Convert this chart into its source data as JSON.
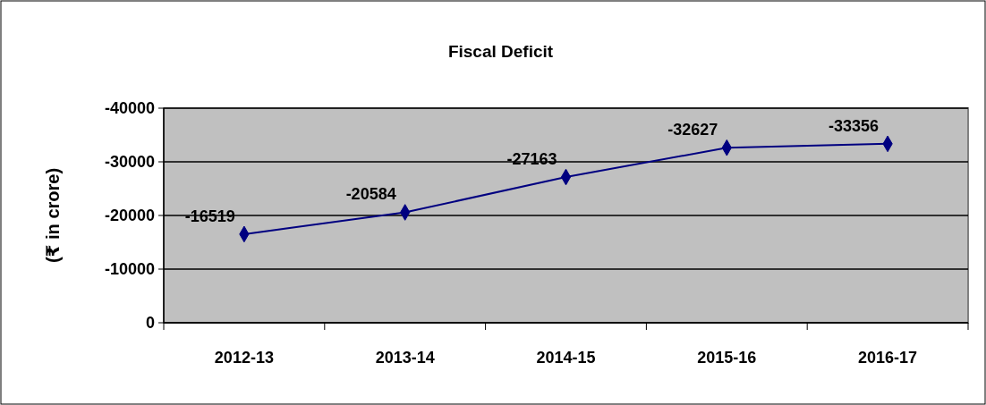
{
  "chart_data": {
    "type": "line",
    "title": "Fiscal Deficit",
    "ylabel": "(₹ in crore)",
    "categories": [
      "2012-13",
      "2013-14",
      "2014-15",
      "2015-16",
      "2016-17"
    ],
    "series": [
      {
        "color": "#000080",
        "values": [
          -16519,
          -20584,
          -27163,
          -32627,
          -33356
        ]
      }
    ],
    "ylim": [
      0,
      -40000
    ],
    "yticks": [
      0,
      -10000,
      -20000,
      -30000,
      -40000
    ],
    "grid": "y",
    "marker": "diamond",
    "line_style": "solid",
    "data_labels": true
  }
}
